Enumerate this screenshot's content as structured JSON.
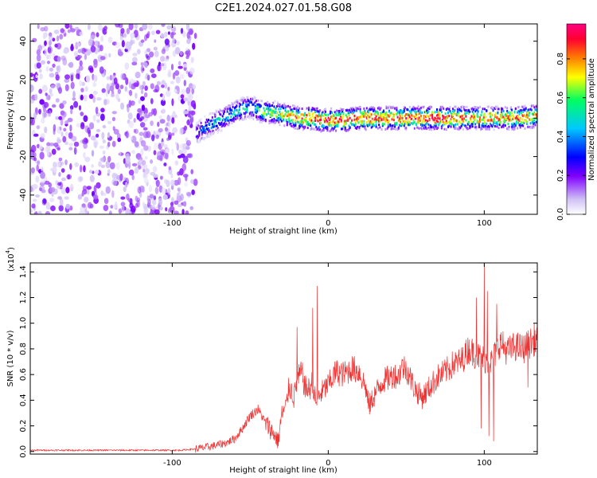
{
  "figure": {
    "title": "C2E1.2024.027.01.58.G08"
  },
  "chart_data": [
    {
      "type": "heatmap",
      "xlabel": "Height of straight line (km)",
      "ylabel": "Frequency (Hz)",
      "xlim": [
        -191,
        134
      ],
      "ylim": [
        -50,
        49
      ],
      "x_ticks": [
        -100,
        0,
        100
      ],
      "y_ticks": [
        -40,
        -20,
        0,
        20,
        40
      ],
      "colorbar": {
        "label": "Normalized spectral amplitude",
        "range": [
          0,
          0.98
        ],
        "ticks": [
          0.0,
          0.2,
          0.4,
          0.6,
          0.8
        ],
        "colormap": [
          "#ffffff",
          "#cfc0f5",
          "#8000ff",
          "#0000ff",
          "#00c8ff",
          "#00ff60",
          "#ffff00",
          "#ff8000",
          "#ff0030",
          "#ff0080"
        ]
      },
      "noise_region": {
        "x_range": [
          -191,
          -85
        ],
        "level": 0.12
      },
      "signal_ridge": {
        "x": [
          -85,
          -80,
          -75,
          -70,
          -65,
          -60,
          -55,
          -50,
          -45,
          -40,
          -35,
          -30,
          -25,
          -20,
          -15,
          -10,
          -5,
          0,
          10,
          20,
          30,
          40,
          50,
          60,
          70,
          80,
          90,
          100,
          110,
          120,
          134
        ],
        "frequency": [
          -8,
          -5,
          -3,
          -1,
          1,
          3,
          5,
          6,
          4,
          3,
          3,
          2,
          1,
          0,
          0,
          0,
          -1,
          -1,
          -1,
          0,
          0,
          0,
          0,
          0,
          0,
          0,
          0,
          0,
          0,
          0,
          1
        ],
        "amplitude": [
          0.3,
          0.4,
          0.45,
          0.45,
          0.45,
          0.5,
          0.5,
          0.45,
          0.55,
          0.6,
          0.62,
          0.68,
          0.72,
          0.8,
          0.85,
          0.9,
          0.85,
          0.88,
          0.9,
          0.9,
          0.88,
          0.8,
          0.85,
          0.9,
          0.9,
          0.85,
          0.8,
          0.8,
          0.75,
          0.8,
          0.75
        ]
      }
    },
    {
      "type": "line",
      "xlabel": "Height of straight line (km)",
      "ylabel": "SNR (10 * v/v)",
      "y_scale_label": "(x10",
      "y_scale_exponent": "4",
      "y_scale_close": ")",
      "xlim": [
        -191,
        134
      ],
      "ylim": [
        -0.02,
        1.47
      ],
      "x_ticks": [
        -100,
        0,
        100
      ],
      "y_ticks": [
        "0.0",
        "0.2",
        "0.4",
        "0.6",
        "0.8",
        "1.0",
        "1.2",
        "1.4"
      ],
      "color": "#ee3333",
      "series": [
        {
          "x": [
            -191,
            -170,
            -150,
            -130,
            -110,
            -95,
            -85,
            -75,
            -65,
            -60,
            -55,
            -50,
            -45,
            -40,
            -35,
            -32,
            -30,
            -27,
            -25,
            -22,
            -20,
            -17,
            -15,
            -12,
            -10,
            -8,
            -5,
            0,
            5,
            10,
            15,
            20,
            24,
            26,
            30,
            35,
            40,
            42,
            45,
            47,
            50,
            55,
            60,
            65,
            70,
            75,
            80,
            85,
            90,
            95,
            100,
            105,
            110,
            115,
            120,
            125,
            130,
            134
          ],
          "y": [
            0.01,
            0.01,
            0.01,
            0.01,
            0.01,
            0.01,
            0.02,
            0.04,
            0.07,
            0.1,
            0.18,
            0.28,
            0.33,
            0.22,
            0.14,
            0.08,
            0.28,
            0.35,
            0.52,
            0.42,
            0.55,
            0.62,
            0.5,
            0.48,
            0.55,
            0.38,
            0.45,
            0.52,
            0.62,
            0.6,
            0.65,
            0.62,
            0.5,
            0.35,
            0.45,
            0.55,
            0.58,
            0.6,
            0.58,
            0.66,
            0.65,
            0.5,
            0.42,
            0.5,
            0.58,
            0.62,
            0.68,
            0.7,
            0.8,
            0.75,
            0.72,
            0.7,
            0.85,
            0.78,
            0.82,
            0.8,
            0.85,
            0.88
          ]
        }
      ],
      "spikes": [
        {
          "x": -20,
          "y": 0.97
        },
        {
          "x": -10,
          "y": 1.12
        },
        {
          "x": -7,
          "y": 1.29
        },
        {
          "x": 95,
          "y": 1.2
        },
        {
          "x": 100,
          "y": 1.46
        },
        {
          "x": 102,
          "y": 1.25
        },
        {
          "x": 106,
          "y": 1.35
        },
        {
          "x": 108,
          "y": 1.15
        },
        {
          "x": 132,
          "y": 1.0
        }
      ],
      "dips": [
        {
          "x": 98,
          "y": 0.18
        },
        {
          "x": 103,
          "y": 0.12
        },
        {
          "x": 106,
          "y": 0.08
        },
        {
          "x": 128,
          "y": 0.5
        }
      ]
    }
  ]
}
